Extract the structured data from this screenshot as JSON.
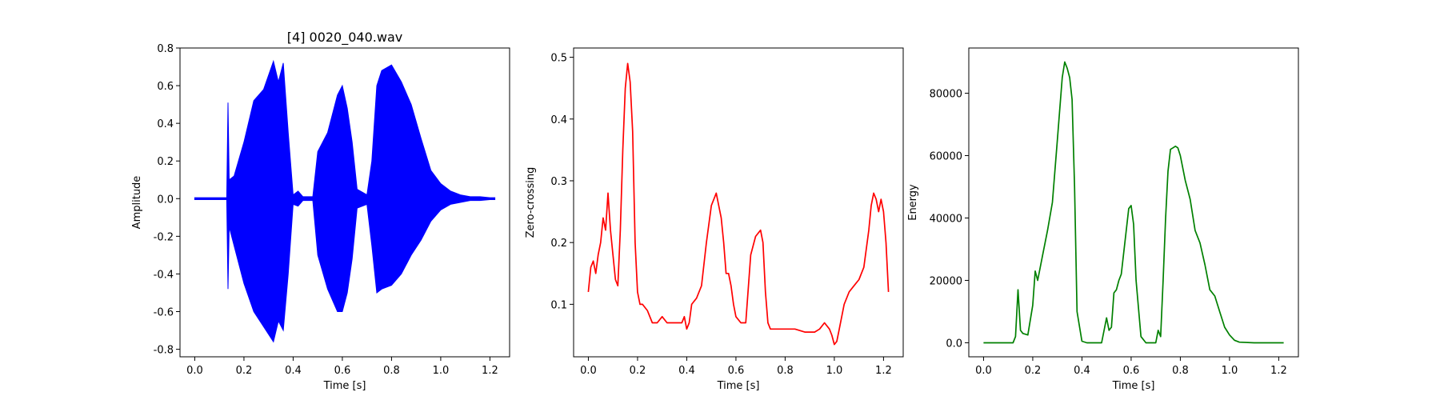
{
  "figure": {
    "background": "#ffffff"
  },
  "chart_data": [
    {
      "type": "line",
      "title": "[4] 0020_040.wav",
      "xlabel": "Time [s]",
      "ylabel": "Amplitude",
      "xlim": [
        -0.06,
        1.28
      ],
      "ylim": [
        -0.84,
        0.8
      ],
      "xticks": [
        0.0,
        0.2,
        0.4,
        0.6,
        0.8,
        1.0,
        1.2
      ],
      "yticks": [
        -0.8,
        -0.6,
        -0.4,
        -0.2,
        0.0,
        0.2,
        0.4,
        0.6,
        0.8
      ],
      "color": "#0000ff",
      "grid": false,
      "envelope_series": {
        "x": [
          0.0,
          0.13,
          0.135,
          0.14,
          0.16,
          0.2,
          0.24,
          0.28,
          0.32,
          0.34,
          0.36,
          0.38,
          0.4,
          0.42,
          0.44,
          0.48,
          0.5,
          0.54,
          0.58,
          0.6,
          0.62,
          0.64,
          0.66,
          0.7,
          0.72,
          0.74,
          0.76,
          0.8,
          0.84,
          0.88,
          0.92,
          0.96,
          1.0,
          1.04,
          1.08,
          1.12,
          1.16,
          1.2,
          1.22
        ],
        "upper": [
          0.005,
          0.005,
          0.51,
          0.1,
          0.12,
          0.3,
          0.52,
          0.58,
          0.73,
          0.62,
          0.72,
          0.35,
          0.02,
          0.04,
          0.01,
          0.01,
          0.25,
          0.35,
          0.55,
          0.6,
          0.48,
          0.3,
          0.05,
          0.02,
          0.2,
          0.6,
          0.68,
          0.71,
          0.62,
          0.5,
          0.32,
          0.15,
          0.08,
          0.04,
          0.02,
          0.01,
          0.01,
          0.005,
          0.005
        ],
        "lower": [
          -0.005,
          -0.005,
          -0.48,
          -0.15,
          -0.25,
          -0.45,
          -0.6,
          -0.68,
          -0.76,
          -0.65,
          -0.7,
          -0.4,
          -0.03,
          -0.04,
          -0.01,
          -0.01,
          -0.3,
          -0.48,
          -0.6,
          -0.6,
          -0.5,
          -0.32,
          -0.05,
          -0.03,
          -0.25,
          -0.5,
          -0.48,
          -0.46,
          -0.4,
          -0.3,
          -0.22,
          -0.12,
          -0.06,
          -0.03,
          -0.02,
          -0.01,
          -0.01,
          -0.005,
          -0.005
        ]
      }
    },
    {
      "type": "line",
      "title": "",
      "xlabel": "Time [s]",
      "ylabel": "Zero-crossing",
      "xlim": [
        -0.06,
        1.28
      ],
      "ylim": [
        0.015,
        0.515
      ],
      "xticks": [
        0.0,
        0.2,
        0.4,
        0.6,
        0.8,
        1.0,
        1.2
      ],
      "yticks": [
        0.1,
        0.2,
        0.3,
        0.4,
        0.5
      ],
      "color": "#ff0000",
      "grid": false,
      "series": [
        {
          "x": [
            0.0,
            0.01,
            0.02,
            0.03,
            0.04,
            0.05,
            0.06,
            0.07,
            0.08,
            0.09,
            0.1,
            0.11,
            0.12,
            0.13,
            0.14,
            0.15,
            0.16,
            0.17,
            0.18,
            0.19,
            0.2,
            0.21,
            0.22,
            0.24,
            0.26,
            0.28,
            0.3,
            0.32,
            0.34,
            0.36,
            0.38,
            0.39,
            0.4,
            0.41,
            0.42,
            0.44,
            0.46,
            0.48,
            0.5,
            0.51,
            0.52,
            0.53,
            0.54,
            0.55,
            0.56,
            0.57,
            0.58,
            0.59,
            0.6,
            0.62,
            0.64,
            0.66,
            0.68,
            0.7,
            0.71,
            0.72,
            0.73,
            0.74,
            0.76,
            0.8,
            0.84,
            0.88,
            0.92,
            0.94,
            0.96,
            0.98,
            0.99,
            1.0,
            1.01,
            1.02,
            1.04,
            1.06,
            1.08,
            1.1,
            1.12,
            1.14,
            1.15,
            1.16,
            1.17,
            1.18,
            1.19,
            1.2,
            1.21,
            1.22
          ],
          "y": [
            0.12,
            0.16,
            0.17,
            0.15,
            0.18,
            0.2,
            0.24,
            0.22,
            0.28,
            0.22,
            0.18,
            0.14,
            0.13,
            0.22,
            0.35,
            0.45,
            0.49,
            0.46,
            0.38,
            0.2,
            0.12,
            0.1,
            0.1,
            0.09,
            0.07,
            0.07,
            0.08,
            0.07,
            0.07,
            0.07,
            0.07,
            0.08,
            0.06,
            0.07,
            0.1,
            0.11,
            0.13,
            0.2,
            0.26,
            0.27,
            0.28,
            0.26,
            0.24,
            0.2,
            0.15,
            0.15,
            0.13,
            0.1,
            0.08,
            0.07,
            0.07,
            0.18,
            0.21,
            0.22,
            0.2,
            0.12,
            0.07,
            0.06,
            0.06,
            0.06,
            0.06,
            0.055,
            0.055,
            0.06,
            0.07,
            0.06,
            0.05,
            0.035,
            0.04,
            0.06,
            0.1,
            0.12,
            0.13,
            0.14,
            0.16,
            0.22,
            0.26,
            0.28,
            0.27,
            0.25,
            0.27,
            0.25,
            0.2,
            0.12
          ]
        }
      ]
    },
    {
      "type": "line",
      "title": "",
      "xlabel": "Time [s]",
      "ylabel": "Energy",
      "xlim": [
        -0.06,
        1.28
      ],
      "ylim": [
        -4500,
        94500
      ],
      "xticks": [
        0.0,
        0.2,
        0.4,
        0.6,
        0.8,
        1.0,
        1.2
      ],
      "yticks": [
        0,
        20000,
        40000,
        60000,
        80000
      ],
      "color": "#008000",
      "grid": false,
      "series": [
        {
          "x": [
            0.0,
            0.12,
            0.13,
            0.14,
            0.15,
            0.16,
            0.18,
            0.2,
            0.21,
            0.22,
            0.24,
            0.26,
            0.28,
            0.3,
            0.32,
            0.33,
            0.34,
            0.35,
            0.36,
            0.37,
            0.38,
            0.4,
            0.42,
            0.44,
            0.48,
            0.5,
            0.51,
            0.52,
            0.53,
            0.54,
            0.55,
            0.56,
            0.58,
            0.59,
            0.6,
            0.61,
            0.62,
            0.64,
            0.66,
            0.7,
            0.71,
            0.72,
            0.73,
            0.74,
            0.75,
            0.76,
            0.77,
            0.78,
            0.79,
            0.8,
            0.82,
            0.84,
            0.86,
            0.88,
            0.9,
            0.92,
            0.94,
            0.96,
            0.98,
            1.0,
            1.02,
            1.04,
            1.1,
            1.22
          ],
          "y": [
            0,
            0,
            2000,
            17000,
            4000,
            3000,
            2500,
            12000,
            23000,
            20000,
            28000,
            36000,
            45000,
            65000,
            85000,
            90000,
            88000,
            85000,
            78000,
            50000,
            10000,
            500,
            0,
            0,
            0,
            8000,
            4000,
            5000,
            16000,
            17000,
            20000,
            22000,
            36000,
            43000,
            44000,
            38000,
            20000,
            2000,
            0,
            0,
            4000,
            2000,
            20000,
            40000,
            55000,
            62000,
            62500,
            63000,
            62500,
            60000,
            52000,
            46000,
            36000,
            32000,
            25000,
            17000,
            15000,
            10000,
            5000,
            2500,
            800,
            200,
            0,
            0
          ]
        }
      ]
    }
  ]
}
